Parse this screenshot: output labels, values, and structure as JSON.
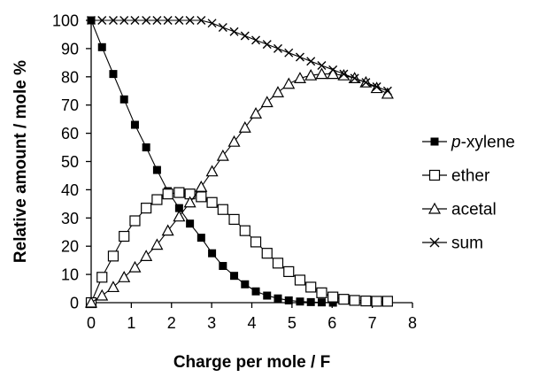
{
  "chart_data": {
    "type": "line",
    "title": "",
    "xlabel": "Charge per mole / F",
    "ylabel": "Relative amount / mole %",
    "xlim": [
      0,
      8
    ],
    "ylim": [
      0,
      100
    ],
    "xticks": [
      "0",
      "1",
      "2",
      "3",
      "4",
      "5",
      "6",
      "7",
      "8"
    ],
    "yticks": [
      "0",
      "10",
      "20",
      "30",
      "40",
      "50",
      "60",
      "70",
      "80",
      "90",
      "100"
    ],
    "grid": false,
    "legend_position": "right",
    "series": [
      {
        "name": "p-xylene",
        "legend_prefix": "p",
        "legend_suffix": "-xylene",
        "marker": "filled-square",
        "x": [
          0,
          0.27,
          0.55,
          0.82,
          1.09,
          1.37,
          1.64,
          1.91,
          2.19,
          2.46,
          2.74,
          3.01,
          3.28,
          3.56,
          3.83,
          4.1,
          4.38,
          4.65,
          4.92,
          5.2,
          5.47,
          5.74,
          6.02
        ],
        "y": [
          100,
          90.5,
          81,
          72,
          63,
          55,
          47,
          39.5,
          33.5,
          28,
          23,
          17.5,
          13,
          9.5,
          6.5,
          4,
          2.5,
          1.5,
          0.8,
          0.4,
          0.2,
          0.1,
          0
        ]
      },
      {
        "name": "ether",
        "marker": "open-square",
        "x": [
          0,
          0.27,
          0.55,
          0.82,
          1.09,
          1.37,
          1.64,
          1.91,
          2.19,
          2.46,
          2.74,
          3.01,
          3.28,
          3.56,
          3.83,
          4.1,
          4.38,
          4.65,
          4.92,
          5.2,
          5.47,
          5.74,
          6.02,
          6.29,
          6.56,
          6.84,
          7.11,
          7.38
        ],
        "y": [
          0,
          9,
          16.5,
          23.5,
          29,
          33.5,
          36.5,
          38.5,
          39,
          38.5,
          37.5,
          35.5,
          33,
          29.5,
          25.5,
          21.5,
          17.5,
          14,
          11,
          8,
          5.5,
          3.5,
          2,
          1.2,
          0.8,
          0.6,
          0.5,
          0.5
        ]
      },
      {
        "name": "acetal",
        "marker": "open-triangle",
        "x": [
          0,
          0.27,
          0.55,
          0.82,
          1.09,
          1.37,
          1.64,
          1.91,
          2.19,
          2.46,
          2.74,
          3.01,
          3.28,
          3.56,
          3.83,
          4.1,
          4.38,
          4.65,
          4.92,
          5.2,
          5.47,
          5.74,
          6.02,
          6.29,
          6.56,
          6.84,
          7.11,
          7.38
        ],
        "y": [
          0,
          2.5,
          5.5,
          9,
          12.5,
          16.5,
          20.5,
          25.5,
          30.5,
          35.5,
          41,
          46.5,
          52,
          57,
          62,
          67,
          71,
          74.5,
          77.5,
          79.5,
          80.5,
          81,
          81,
          80.5,
          79.5,
          78,
          76,
          74
        ]
      },
      {
        "name": "sum",
        "marker": "cross",
        "x": [
          0,
          0.27,
          0.55,
          0.82,
          1.09,
          1.37,
          1.64,
          1.91,
          2.19,
          2.46,
          2.74,
          3.01,
          3.28,
          3.56,
          3.83,
          4.1,
          4.38,
          4.65,
          4.92,
          5.2,
          5.47,
          5.74,
          6.02,
          6.29,
          6.56,
          6.84,
          7.11,
          7.38
        ],
        "y": [
          100,
          100,
          100,
          100,
          100,
          100,
          100,
          100,
          100,
          100,
          100,
          99,
          97.5,
          96,
          94.5,
          93,
          91.5,
          90,
          88.5,
          87,
          85.5,
          84,
          82.5,
          81,
          79.5,
          78,
          76.5,
          75
        ]
      }
    ]
  }
}
